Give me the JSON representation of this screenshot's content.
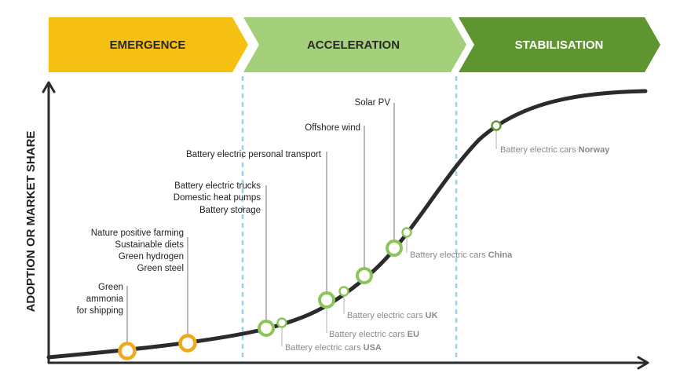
{
  "phases": {
    "emergence": {
      "label": "EMERGENCE",
      "color": "#F6C012"
    },
    "acceleration": {
      "label": "ACCELERATION",
      "color": "#A4D07C"
    },
    "stabilisation": {
      "label": "STABILISATION",
      "color": "#5E952E"
    }
  },
  "y_axis_label": "ADOPTION OR MARKET SHARE",
  "technologies": {
    "green_ammonia": [
      "Green",
      "ammonia",
      "for shipping"
    ],
    "farming_group": [
      "Nature positive farming",
      "Sustainable diets",
      "Green hydrogen",
      "Green steel"
    ],
    "trucks_group": [
      "Battery electric trucks",
      "Domestic heat pumps",
      "Battery storage"
    ],
    "personal_transport": "Battery electric personal transport",
    "offshore_wind": "Offshore wind",
    "solar_pv": "Solar PV"
  },
  "cars": {
    "prefix": "Battery electric cars ",
    "usa": "USA",
    "eu": "EU",
    "uk": "UK",
    "china": "China",
    "norway": "Norway"
  },
  "colors": {
    "curve": "#2b2b2b",
    "yellow_marker": "#F0A91B",
    "green_marker": "#8BC55A",
    "divider": "#9DD1EC",
    "grey_text": "#8a8a8a"
  }
}
